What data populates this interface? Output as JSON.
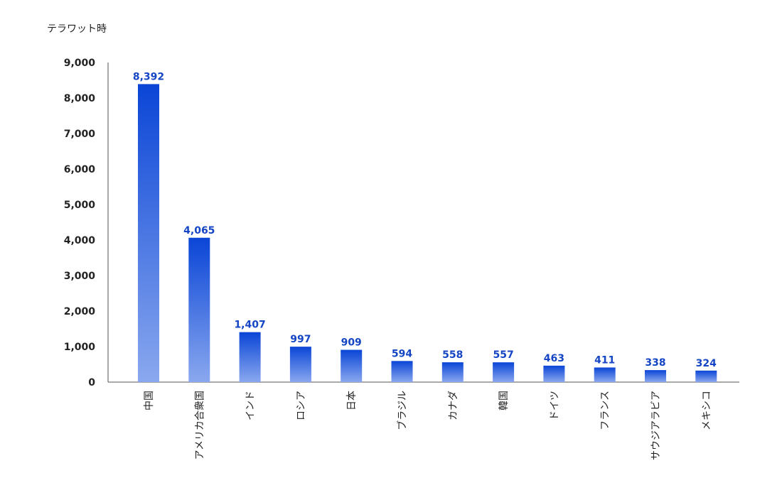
{
  "chart_data": {
    "type": "bar",
    "unit_label": "テラワット時",
    "categories": [
      "中国",
      "アメリカ合衆国",
      "インド",
      "ロシア",
      "日本",
      "ブラジル",
      "カナダ",
      "韓国",
      "ドイツ",
      "フランス",
      "サウジアラビア",
      "メキシコ"
    ],
    "values": [
      8392,
      4065,
      1407,
      997,
      909,
      594,
      558,
      557,
      463,
      411,
      338,
      324
    ],
    "data_labels": [
      "8,392",
      "4,065",
      "1,407",
      "997",
      "909",
      "594",
      "558",
      "557",
      "463",
      "411",
      "338",
      "324"
    ],
    "y_ticks": [
      0,
      1000,
      2000,
      3000,
      4000,
      5000,
      6000,
      7000,
      8000,
      9000
    ],
    "y_tick_labels": [
      "0",
      "1,000",
      "2,000",
      "3,000",
      "4,000",
      "5,000",
      "6,000",
      "7,000",
      "8,000",
      "9,000"
    ],
    "ylim": [
      0,
      9000
    ],
    "grid": false,
    "legend": "none",
    "colors": {
      "bar_top": "#0a45d6",
      "bar_bottom": "#8aa8ef",
      "data_label": "#1445c4",
      "axis": "#555555"
    }
  }
}
